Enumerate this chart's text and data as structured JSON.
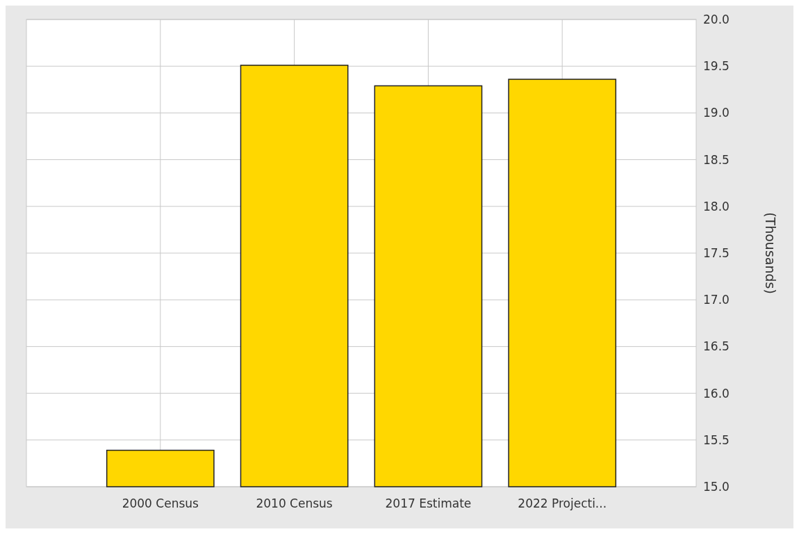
{
  "chart_data": {
    "type": "bar",
    "ylabel": "(Thousands)",
    "categories": [
      "2000 Census",
      "2010 Census",
      "2017 Estimate",
      "2022 Projecti..."
    ],
    "values": [
      15.39,
      19.51,
      19.29,
      19.36
    ],
    "color": "#ffd700",
    "ylim": [
      15,
      20
    ],
    "yticks": [
      {
        "value": 15,
        "label": "15.0"
      },
      15.5,
      {
        "value": 16,
        "label": "16.0"
      },
      16.5,
      {
        "value": 17,
        "label": "17.0"
      },
      17.5,
      {
        "value": 18,
        "label": "18.0"
      },
      18.5,
      {
        "value": 19,
        "label": "19.0"
      },
      19.5,
      {
        "value": 20,
        "label": "20.0"
      }
    ],
    "grid": true
  }
}
